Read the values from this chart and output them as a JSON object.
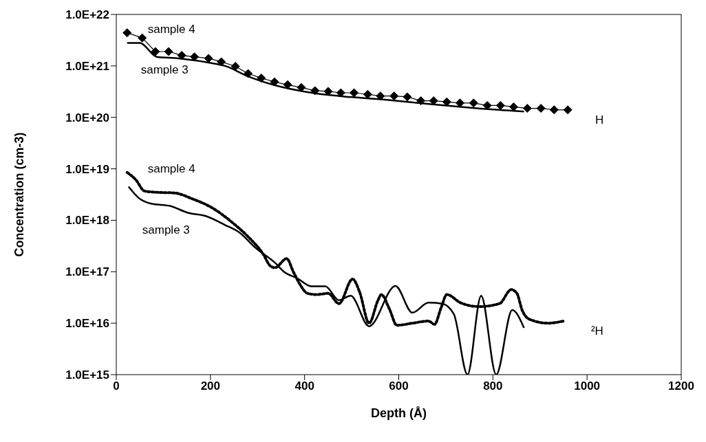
{
  "chart_data": {
    "type": "line",
    "xlabel": "Depth (Å)",
    "ylabel": "Concentration (cm-3)",
    "log": "y",
    "grid": false,
    "legend": false,
    "xlim": [
      0,
      1200
    ],
    "xticks": [
      0,
      200,
      400,
      600,
      800,
      1000,
      1200
    ],
    "ylim": [
      1000000000000000.0,
      1e+22
    ],
    "yticks": [
      {
        "value": 1000000000000000.0,
        "label": "1.0E+15"
      },
      {
        "value": 1e+16,
        "label": "1.0E+16"
      },
      {
        "value": 1e+17,
        "label": "1.0E+17"
      },
      {
        "value": 1e+18,
        "label": "1.0E+18"
      },
      {
        "value": 1e+19,
        "label": "1.0E+19"
      },
      {
        "value": 1e+20,
        "label": "1.0E+20"
      },
      {
        "value": 1e+21,
        "label": "1.0E+21"
      },
      {
        "value": 1e+22,
        "label": "1.0E+22"
      }
    ],
    "series": [
      {
        "name": "sample 4",
        "color": "#000000",
        "marker": "diamond",
        "line_style": "solid",
        "x": [
          23,
          55,
          83,
          111,
          139,
          166,
          196,
          223,
          253,
          280,
          308,
          336,
          364,
          393,
          422,
          450,
          477,
          505,
          534,
          561,
          590,
          618,
          647,
          674,
          702,
          730,
          759,
          788,
          816,
          844,
          873,
          902,
          930,
          959
        ],
        "values": [
          4.4e+21,
          3.5e+21,
          1.9e+21,
          1.9e+21,
          1.6e+21,
          1.5e+21,
          1.4e+21,
          1.2e+21,
          9.8e+20,
          7.1e+20,
          5.8e+20,
          4.9e+20,
          4.3e+20,
          3.8e+20,
          3.3e+20,
          3.2e+20,
          3e+20,
          3e+20,
          2.8e+20,
          2.6e+20,
          2.6e+20,
          2.5e+20,
          2.1e+20,
          2.1e+20,
          2e+20,
          1.9e+20,
          1.9e+20,
          1.7e+20,
          1.7e+20,
          1.6e+20,
          1.5e+20,
          1.5e+20,
          1.4e+20,
          1.4e+20
        ]
      },
      {
        "name": "sample 3",
        "color": "#000000",
        "marker": "none",
        "line_style": "solid",
        "x": [
          23,
          50,
          86,
          133,
          210,
          231,
          279,
          337,
          415,
          473,
          571,
          641,
          700,
          765,
          866
        ],
        "values": [
          2.8e+21,
          2.8e+21,
          1.5e+21,
          1.4e+21,
          1.1e+21,
          1e+21,
          6.3e+20,
          4.2e+20,
          3e+20,
          2.6e+20,
          2.2e+20,
          1.9e+20,
          1.7e+20,
          1.5e+20,
          1.3e+20
        ]
      },
      {
        "name": "sample 4",
        "color": "#000000",
        "marker": "none",
        "line_style": "dotted",
        "x": [
          23,
          41,
          60,
          85,
          123,
          162,
          201,
          250,
          279,
          312,
          327,
          337,
          362,
          376,
          391,
          406,
          425,
          450,
          473,
          502,
          517,
          537,
          556,
          563,
          580,
          596,
          629,
          663,
          676,
          690,
          702,
          731,
          770,
          814,
          839,
          851,
          862,
          877,
          917,
          950
        ],
        "values": [
          8.5e+18,
          6.2e+18,
          3.7e+18,
          3.5e+18,
          3.4e+18,
          2.6e+18,
          1.8e+18,
          8.5e+17,
          4.9e+17,
          2.2e+17,
          1.3e+17,
          1.2e+17,
          1.8e+17,
          1e+17,
          5.5e+16,
          3.8e+16,
          3.6e+16,
          3.8e+16,
          2.4e+16,
          7.2e+16,
          4e+16,
          1e+16,
          2.8e+16,
          3.6e+16,
          1.9e+16,
          9100000000000000.0,
          1e+16,
          1.1e+16,
          9500000000000000.0,
          2e+16,
          3.6e+16,
          2.5e+16,
          2.1e+16,
          2.4e+16,
          4.5e+16,
          3.8e+16,
          1.8e+16,
          1.2e+16,
          1e+16,
          1.1e+16
        ]
      },
      {
        "name": "sample 3",
        "color": "#000000",
        "marker": "none",
        "line_style": "solid",
        "x": [
          26,
          50,
          74,
          114,
          152,
          191,
          231,
          260,
          298,
          337,
          356,
          385,
          415,
          444,
          473,
          498,
          537,
          593,
          629,
          663,
          692,
          717,
          746,
          775,
          807,
          841,
          866
        ],
        "values": [
          4.5e+18,
          2.6e+18,
          2.1e+18,
          1.9e+18,
          1.4e+18,
          1.2e+18,
          8.1e+17,
          5.9e+17,
          2.8e+17,
          1.5e+17,
          1e+17,
          7.4e+16,
          5.2e+16,
          5.2e+16,
          2.8e+16,
          3.4e+16,
          8700000000000000.0,
          5.3e+16,
          1.6e+16,
          2.5e+16,
          2.4e+16,
          1.5e+16,
          1000000000000000.0,
          3.4e+16,
          1000000000000000.0,
          1.8e+16,
          8100000000000000.0
        ]
      }
    ],
    "annotations": [
      "H",
      "²H"
    ]
  }
}
